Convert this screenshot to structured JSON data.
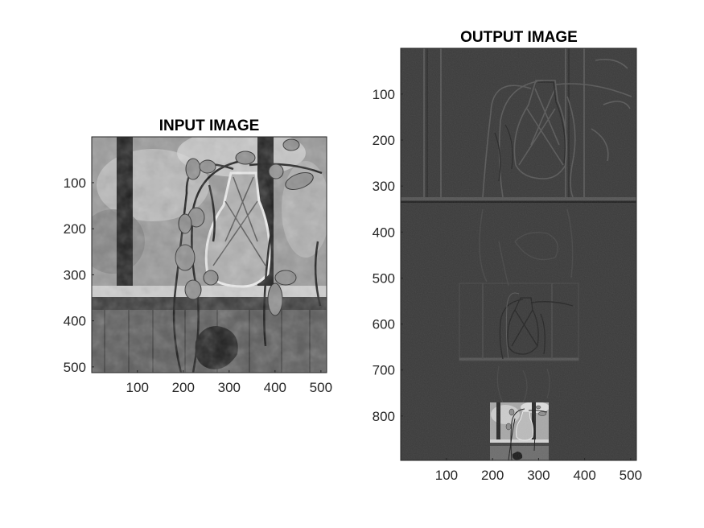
{
  "chart_data": [
    {
      "type": "image",
      "title": "INPUT IMAGE",
      "xlim": [
        0.5,
        512.5
      ],
      "ylim": [
        0.5,
        512.5
      ],
      "y_reversed": true,
      "xticks": [
        100,
        200,
        300,
        400,
        500
      ],
      "yticks": [
        100,
        200,
        300,
        400,
        500
      ],
      "colormap": "gray",
      "content": "grayscale photo of a glass vase with a trailing ivy plant on a windowsill"
    },
    {
      "type": "image",
      "title": "OUTPUT IMAGE",
      "xlim": [
        0.5,
        512.5
      ],
      "ylim": [
        0.5,
        896.5
      ],
      "y_reversed": true,
      "xticks": [
        100,
        200,
        300,
        400,
        500
      ],
      "yticks": [
        100,
        200,
        300,
        400,
        500,
        600,
        700,
        800
      ],
      "colormap": "gray",
      "content": "multi-level wavelet/pyramid decomposition: detail bands at several scales with a small approximation image at the bottom"
    }
  ]
}
